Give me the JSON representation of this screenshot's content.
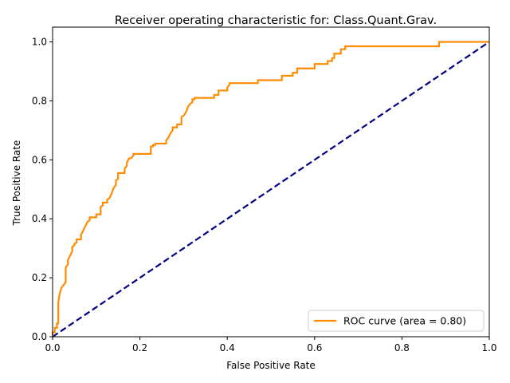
{
  "chart_data": {
    "type": "line",
    "title": "Receiver operating characteristic for: Class.Quant.Grav.",
    "xlabel": "False Positive Rate",
    "ylabel": "True Positive Rate",
    "xlim": [
      0.0,
      1.0
    ],
    "ylim": [
      0.0,
      1.05
    ],
    "xticks": [
      "0.0",
      "0.2",
      "0.4",
      "0.6",
      "0.8",
      "1.0"
    ],
    "yticks": [
      "0.0",
      "0.2",
      "0.4",
      "0.6",
      "0.8",
      "1.0"
    ],
    "grid": false,
    "legend_position": "lower-right",
    "series": [
      {
        "name": "ROC curve (area = 0.80)",
        "color": "#ff8c00",
        "style": "solid",
        "x": [
          0.0,
          0.0,
          0.005,
          0.005,
          0.01,
          0.01,
          0.013,
          0.013,
          0.015,
          0.017,
          0.02,
          0.025,
          0.03,
          0.03,
          0.035,
          0.035,
          0.04,
          0.045,
          0.045,
          0.05,
          0.05,
          0.055,
          0.055,
          0.065,
          0.065,
          0.07,
          0.075,
          0.08,
          0.085,
          0.085,
          0.1,
          0.1,
          0.11,
          0.11,
          0.115,
          0.115,
          0.125,
          0.125,
          0.13,
          0.135,
          0.14,
          0.145,
          0.145,
          0.15,
          0.15,
          0.165,
          0.165,
          0.17,
          0.17,
          0.175,
          0.18,
          0.185,
          0.185,
          0.19,
          0.19,
          0.225,
          0.225,
          0.23,
          0.23,
          0.235,
          0.235,
          0.26,
          0.26,
          0.265,
          0.27,
          0.275,
          0.275,
          0.285,
          0.285,
          0.295,
          0.295,
          0.3,
          0.305,
          0.31,
          0.315,
          0.32,
          0.32,
          0.325,
          0.325,
          0.37,
          0.37,
          0.38,
          0.38,
          0.4,
          0.4,
          0.405,
          0.405,
          0.47,
          0.47,
          0.525,
          0.525,
          0.55,
          0.55,
          0.56,
          0.56,
          0.6,
          0.6,
          0.63,
          0.63,
          0.64,
          0.64,
          0.645,
          0.645,
          0.66,
          0.66,
          0.67,
          0.67,
          0.695,
          0.695,
          0.885,
          0.885,
          1.0
        ],
        "y": [
          0.0,
          0.015,
          0.015,
          0.03,
          0.03,
          0.045,
          0.045,
          0.115,
          0.135,
          0.15,
          0.165,
          0.175,
          0.185,
          0.235,
          0.245,
          0.26,
          0.275,
          0.29,
          0.305,
          0.31,
          0.315,
          0.32,
          0.33,
          0.33,
          0.345,
          0.36,
          0.375,
          0.39,
          0.395,
          0.405,
          0.405,
          0.415,
          0.415,
          0.44,
          0.445,
          0.455,
          0.455,
          0.465,
          0.47,
          0.485,
          0.505,
          0.515,
          0.53,
          0.535,
          0.555,
          0.555,
          0.57,
          0.58,
          0.59,
          0.605,
          0.605,
          0.615,
          0.62,
          0.62,
          0.62,
          0.62,
          0.645,
          0.645,
          0.65,
          0.65,
          0.655,
          0.655,
          0.665,
          0.675,
          0.69,
          0.7,
          0.71,
          0.71,
          0.72,
          0.72,
          0.745,
          0.75,
          0.76,
          0.78,
          0.79,
          0.795,
          0.805,
          0.805,
          0.81,
          0.81,
          0.82,
          0.82,
          0.835,
          0.835,
          0.845,
          0.855,
          0.86,
          0.86,
          0.87,
          0.87,
          0.885,
          0.885,
          0.895,
          0.895,
          0.91,
          0.91,
          0.925,
          0.925,
          0.935,
          0.935,
          0.945,
          0.945,
          0.96,
          0.96,
          0.975,
          0.975,
          0.985,
          0.985,
          0.985,
          0.985,
          1.0,
          1.0
        ]
      },
      {
        "name": "",
        "color": "#000080",
        "style": "dashed",
        "x": [
          0.0,
          1.0
        ],
        "y": [
          0.0,
          1.0
        ]
      }
    ]
  }
}
